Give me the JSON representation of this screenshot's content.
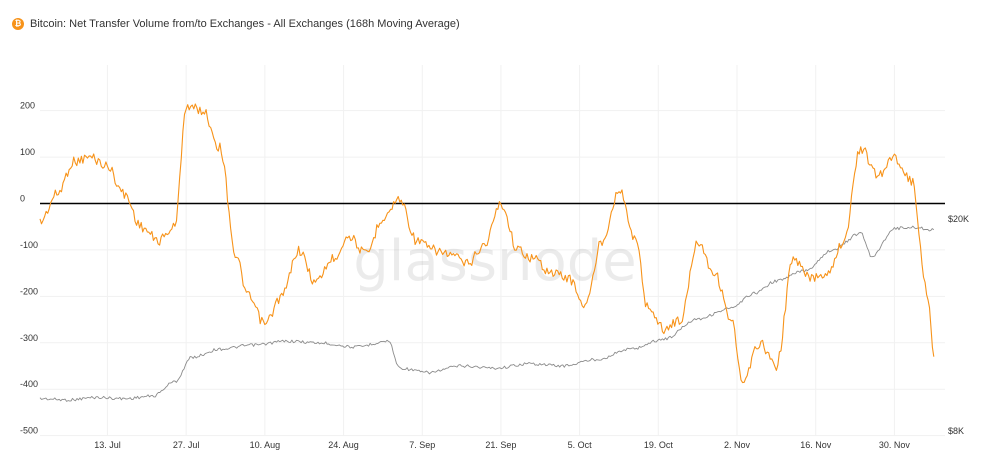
{
  "title": "Bitcoin: Net Transfer Volume from/to Exchanges - All Exchanges (168h Moving Average)",
  "watermark": "glassnode",
  "colors": {
    "primary": "#f7931a",
    "secondary": "#8c8c8c",
    "zero_line": "#000000",
    "brand": "#f7931a"
  },
  "chart_data": {
    "type": "line",
    "title": "Bitcoin: Net Transfer Volume from/to Exchanges - All Exchanges (168h Moving Average)",
    "x_ticks": [
      "13. Jul",
      "27. Jul",
      "10. Aug",
      "24. Aug",
      "7. Sep",
      "21. Sep",
      "5. Oct",
      "19. Oct",
      "2. Nov",
      "16. Nov",
      "30. Nov"
    ],
    "y_left": {
      "ticks": [
        200,
        100,
        0,
        -100,
        -200,
        -300,
        -400,
        -500
      ],
      "range": [
        -500,
        250
      ]
    },
    "y_right": {
      "ticks": [
        "$20K",
        "$8K"
      ],
      "scale": "log",
      "range": [
        8000,
        20000
      ]
    },
    "grid": true,
    "zero_line": true,
    "series": [
      {
        "axis": "left",
        "color": "#f7931a",
        "x": [
          "2020-07-01",
          "2020-07-04",
          "2020-07-07",
          "2020-07-10",
          "2020-07-13",
          "2020-07-16",
          "2020-07-19",
          "2020-07-22",
          "2020-07-25",
          "2020-07-27",
          "2020-07-30",
          "2020-08-02",
          "2020-08-05",
          "2020-08-07",
          "2020-08-10",
          "2020-08-13",
          "2020-08-16",
          "2020-08-19",
          "2020-08-22",
          "2020-08-25",
          "2020-08-28",
          "2020-08-31",
          "2020-09-03",
          "2020-09-06",
          "2020-09-09",
          "2020-09-12",
          "2020-09-15",
          "2020-09-18",
          "2020-09-21",
          "2020-09-24",
          "2020-09-27",
          "2020-09-30",
          "2020-10-03",
          "2020-10-06",
          "2020-10-09",
          "2020-10-12",
          "2020-10-15",
          "2020-10-17",
          "2020-10-20",
          "2020-10-23",
          "2020-10-26",
          "2020-10-29",
          "2020-11-01",
          "2020-11-03",
          "2020-11-06",
          "2020-11-09",
          "2020-11-12",
          "2020-11-15",
          "2020-11-18",
          "2020-11-21",
          "2020-11-24",
          "2020-11-27",
          "2020-11-30",
          "2020-12-03",
          "2020-12-06",
          "2020-12-07"
        ],
        "values": [
          -40,
          20,
          90,
          100,
          80,
          20,
          -50,
          -80,
          -50,
          210,
          200,
          120,
          -120,
          -200,
          -260,
          -200,
          -100,
          -170,
          -120,
          -70,
          -110,
          -30,
          10,
          -80,
          -100,
          -110,
          -130,
          -90,
          0,
          -100,
          -120,
          -150,
          -160,
          -220,
          -80,
          30,
          -80,
          -220,
          -270,
          -250,
          -80,
          -150,
          -250,
          -390,
          -300,
          -350,
          -120,
          -160,
          -150,
          -80,
          120,
          60,
          100,
          50,
          -200,
          -330
        ]
      },
      {
        "axis": "right",
        "color": "#8c8c8c",
        "x": [
          "2020-07-01",
          "2020-07-06",
          "2020-07-11",
          "2020-07-16",
          "2020-07-21",
          "2020-07-25",
          "2020-07-28",
          "2020-08-02",
          "2020-08-08",
          "2020-08-14",
          "2020-08-20",
          "2020-08-26",
          "2020-09-01",
          "2020-09-03",
          "2020-09-08",
          "2020-09-14",
          "2020-09-20",
          "2020-09-26",
          "2020-10-02",
          "2020-10-08",
          "2020-10-14",
          "2020-10-20",
          "2020-10-26",
          "2020-11-01",
          "2020-11-05",
          "2020-11-09",
          "2020-11-14",
          "2020-11-19",
          "2020-11-24",
          "2020-11-26",
          "2020-11-30",
          "2020-12-03",
          "2020-12-07"
        ],
        "values": [
          9200,
          9150,
          9250,
          9200,
          9300,
          9900,
          11000,
          11400,
          11600,
          11800,
          11700,
          11500,
          11800,
          10500,
          10300,
          10600,
          10500,
          10700,
          10600,
          10900,
          11400,
          11900,
          13000,
          13600,
          14500,
          15300,
          16000,
          17500,
          18800,
          17000,
          19200,
          19300,
          19100
        ]
      }
    ]
  }
}
